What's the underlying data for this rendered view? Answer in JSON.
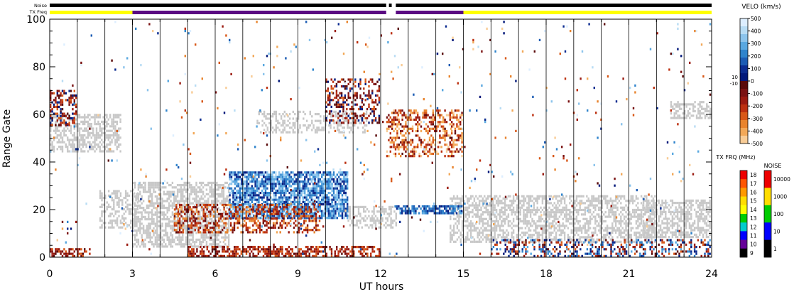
{
  "chart_data": {
    "type": "heatmap",
    "title": "",
    "xlabel": "UT hours",
    "ylabel": "Range Gate",
    "xlim": [
      0,
      24
    ],
    "ylim": [
      0,
      100
    ],
    "x_ticks": [
      0,
      3,
      6,
      9,
      12,
      15,
      18,
      21,
      24
    ],
    "y_ticks": [
      0,
      20,
      40,
      60,
      80,
      100
    ],
    "x_minor_step": 1,
    "y_minor_step": 5,
    "vertical_lines_hours": [
      1,
      2,
      3,
      4,
      5,
      6,
      7,
      8,
      9,
      10,
      11,
      12,
      13,
      14,
      15,
      16,
      17,
      18,
      19,
      20,
      21,
      22,
      23
    ],
    "top_bars": {
      "noise_label": "Noise",
      "freq_label": "TX Freq",
      "data_gaps_hours": [
        [
          12.2,
          12.3
        ],
        [
          12.4,
          12.55
        ]
      ],
      "noise_segments": [
        {
          "from": 0,
          "to": 24,
          "color": "#000000"
        }
      ],
      "freq_segments": [
        {
          "from": 0,
          "to": 3,
          "color": "#ffff00"
        },
        {
          "from": 3,
          "to": 12.2,
          "color": "#5a0a82"
        },
        {
          "from": 12.55,
          "to": 15,
          "color": "#5a0a82"
        },
        {
          "from": 15,
          "to": 24,
          "color": "#ffff00"
        }
      ]
    },
    "velocity_colorbar": {
      "title": "VELO (km/s)",
      "ticks": [
        500,
        400,
        300,
        200,
        100,
        0,
        -100,
        -200,
        -300,
        -400,
        -500
      ],
      "tick_labels": [
        "500",
        "400",
        "300",
        "200",
        "100",
        "0",
        "-100",
        "-200",
        "-300",
        "-400",
        "-500"
      ],
      "small_labels": [
        "10",
        "-10"
      ],
      "colors_positive_top_to_zero": [
        "#ddeeff",
        "#b8dcf4",
        "#8cc4ec",
        "#5aa8e0",
        "#2f84cc",
        "#1c5cb4",
        "#0c2c90",
        "#02187a"
      ],
      "colors_zero_to_negative": [
        "#5a0a0a",
        "#7a1212",
        "#9a1a10",
        "#bc3010",
        "#d85818",
        "#e8842e",
        "#f2a858",
        "#f8cc96"
      ]
    },
    "freq_colorbar": {
      "title": "TX FRQ (MHz)",
      "labels": [
        "18",
        "17",
        "16",
        "15",
        "14",
        "13",
        "12",
        "11",
        "10",
        "9"
      ],
      "colors": [
        "#ee0000",
        "#ff5500",
        "#ff9900",
        "#ffdd00",
        "#ffff00",
        "#00cc00",
        "#00cccc",
        "#0000ff",
        "#660099",
        "#000000"
      ]
    },
    "noise_colorbar": {
      "title": "NOISE",
      "labels": [
        "10000",
        "1000",
        "100",
        "10",
        "1"
      ],
      "colors": [
        "#ee0000",
        "#ffdd00",
        "#00cc00",
        "#0000ff",
        "#000000"
      ]
    },
    "categories_legend": {
      "ground_scatter_color": "#c8c8c8"
    },
    "features": [
      {
        "kind": "ground",
        "x0": 0.0,
        "x1": 2.6,
        "y0": 44,
        "y1": 60,
        "density": 0.55
      },
      {
        "kind": "ground",
        "x0": 1.8,
        "x1": 3.2,
        "y0": 12,
        "y1": 28,
        "density": 0.45
      },
      {
        "kind": "ground",
        "x0": 3.0,
        "x1": 6.5,
        "y0": 4,
        "y1": 32,
        "density": 0.6
      },
      {
        "kind": "ground",
        "x0": 7.5,
        "x1": 11.5,
        "y0": 52,
        "y1": 62,
        "density": 0.35
      },
      {
        "kind": "ground",
        "x0": 10.8,
        "x1": 12.6,
        "y0": 12,
        "y1": 22,
        "density": 0.5
      },
      {
        "kind": "ground",
        "x0": 14.5,
        "x1": 22.0,
        "y0": 6,
        "y1": 26,
        "density": 0.55
      },
      {
        "kind": "ground",
        "x0": 21.5,
        "x1": 24.0,
        "y0": 8,
        "y1": 24,
        "density": 0.6
      },
      {
        "kind": "ground",
        "x0": 22.5,
        "x1": 24.0,
        "y0": 58,
        "y1": 66,
        "density": 0.5
      },
      {
        "kind": "velocity",
        "x0": 6.5,
        "x1": 10.8,
        "y0": 16,
        "y1": 36,
        "vmin": 50,
        "vmax": 400,
        "density": 0.8
      },
      {
        "kind": "velocity",
        "x0": 12.5,
        "x1": 15.0,
        "y0": 18,
        "y1": 22,
        "vmin": 50,
        "vmax": 300,
        "density": 0.75
      },
      {
        "kind": "velocity",
        "x0": 4.5,
        "x1": 9.8,
        "y0": 10,
        "y1": 22,
        "vmin": -400,
        "vmax": -50,
        "density": 0.45
      },
      {
        "kind": "velocity",
        "x0": 5.0,
        "x1": 12.0,
        "y0": 0,
        "y1": 5,
        "vmin": -300,
        "vmax": -50,
        "density": 0.6
      },
      {
        "kind": "velocity",
        "x0": 0.0,
        "x1": 1.5,
        "y0": 0,
        "y1": 4,
        "vmin": -300,
        "vmax": -50,
        "density": 0.5
      },
      {
        "kind": "velocity",
        "x0": 0.0,
        "x1": 1.0,
        "y0": 55,
        "y1": 70,
        "vmin": -300,
        "vmax": 100,
        "density": 0.45
      },
      {
        "kind": "velocity",
        "x0": 12.2,
        "x1": 15.0,
        "y0": 42,
        "y1": 62,
        "vmin": -500,
        "vmax": -50,
        "density": 0.45
      },
      {
        "kind": "velocity",
        "x0": 10.0,
        "x1": 12.0,
        "y0": 56,
        "y1": 75,
        "vmin": -300,
        "vmax": 100,
        "density": 0.35
      },
      {
        "kind": "velocity",
        "x0": 16.0,
        "x1": 24.0,
        "y0": 0,
        "y1": 8,
        "vmin": -300,
        "vmax": 300,
        "density": 0.35
      },
      {
        "kind": "velocity",
        "x0": 0.0,
        "x1": 24.0,
        "y0": 0,
        "y1": 100,
        "vmin": -500,
        "vmax": 500,
        "density": 0.012
      }
    ]
  }
}
